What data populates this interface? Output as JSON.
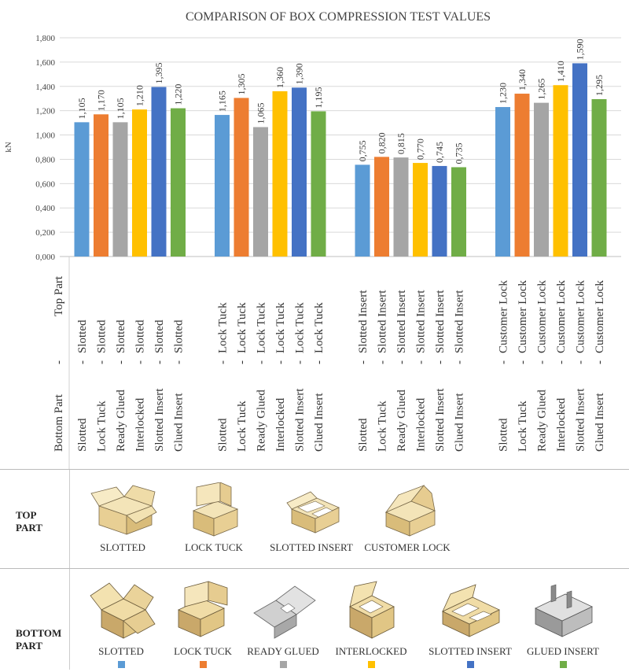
{
  "chart_data": {
    "type": "bar",
    "title": "COMPARISON OF BOX COMPRESSION TEST VALUES",
    "ylabel": "kN",
    "ylim": [
      0,
      1.8
    ],
    "yticks": [
      "0,000",
      "0,200",
      "0,400",
      "0,600",
      "0,800",
      "1,000",
      "1,200",
      "1,400",
      "1,600",
      "1,800"
    ],
    "axis_row_labels": {
      "top": "Top Part",
      "bottom": "Bottom Part"
    },
    "bottom_parts": [
      "Slotted",
      "Lock Tuck",
      "Ready Glued",
      "Interlocked",
      "Slotted Insert",
      "Glued Insert"
    ],
    "bottom_colors": [
      "#5b9bd5",
      "#ed7d31",
      "#a5a5a5",
      "#ffc000",
      "#4472c4",
      "#70ad47"
    ],
    "groups": [
      {
        "top": "Slotted",
        "values": [
          1.105,
          1.17,
          1.105,
          1.21,
          1.395,
          1.22
        ],
        "labels": [
          "1,105",
          "1,170",
          "1,105",
          "1,210",
          "1,395",
          "1,220"
        ]
      },
      {
        "top": "Lock Tuck",
        "values": [
          1.165,
          1.305,
          1.065,
          1.36,
          1.39,
          1.195
        ],
        "labels": [
          "1,165",
          "1,305",
          "1,065",
          "1,360",
          "1,390",
          "1,195"
        ]
      },
      {
        "top": "Slotted Insert",
        "values": [
          0.755,
          0.82,
          0.815,
          0.77,
          0.745,
          0.735
        ],
        "labels": [
          "0,755",
          "0,820",
          "0,815",
          "0,770",
          "0,745",
          "0,735"
        ]
      },
      {
        "top": "Customer Lock",
        "values": [
          1.23,
          1.34,
          1.265,
          1.41,
          1.59,
          1.295
        ],
        "labels": [
          "1,230",
          "1,340",
          "1,265",
          "1,410",
          "1,590",
          "1,295"
        ]
      }
    ]
  },
  "top_panel": {
    "label_line1": "TOP",
    "label_line2": "PART",
    "items": [
      "SLOTTED",
      "LOCK TUCK",
      "SLOTTED INSERT",
      "CUSTOMER LOCK"
    ]
  },
  "bottom_panel": {
    "label_line1": "BOTTOM",
    "label_line2": "PART",
    "items": [
      {
        "name": "SLOTTED",
        "color": "#5b9bd5"
      },
      {
        "name": "LOCK TUCK",
        "color": "#ed7d31"
      },
      {
        "name": "READY GLUED",
        "color": "#a5a5a5"
      },
      {
        "name": "INTERLOCKED",
        "color": "#ffc000"
      },
      {
        "name": "SLOTTED INSERT",
        "color": "#4472c4"
      },
      {
        "name": "GLUED  INSERT",
        "color": "#70ad47"
      }
    ]
  }
}
